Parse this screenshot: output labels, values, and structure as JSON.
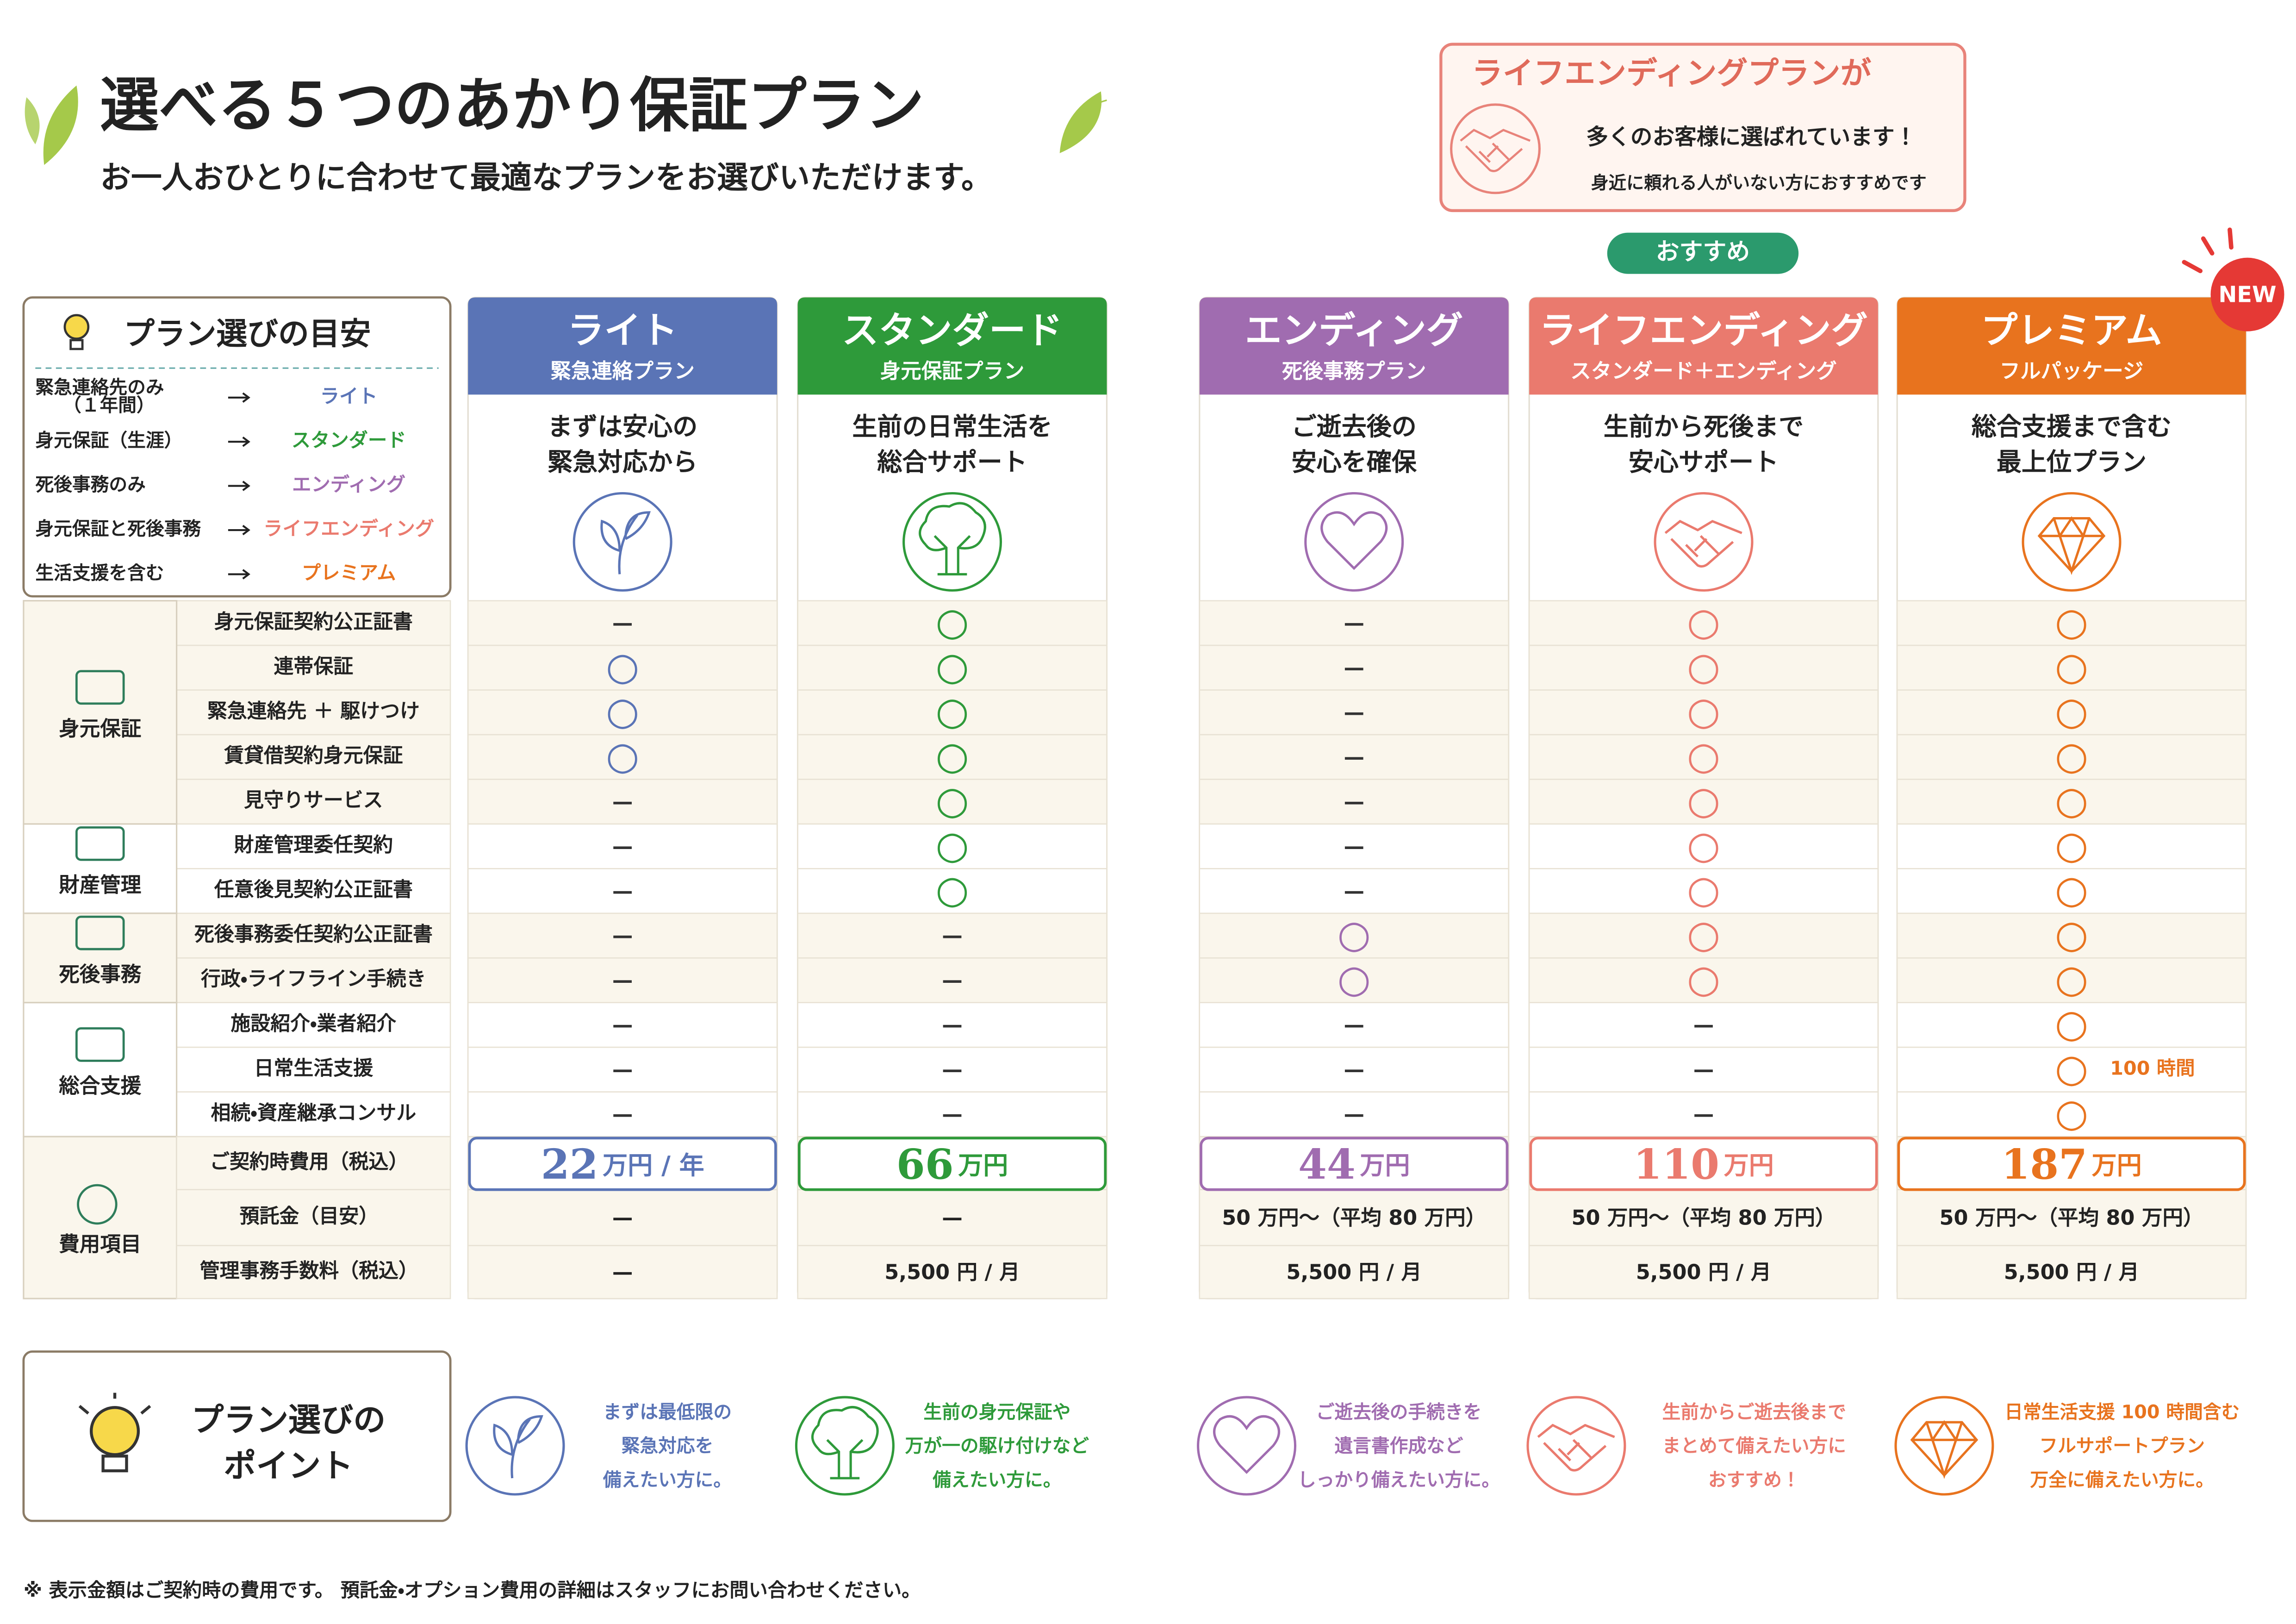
{
  "header": {
    "title": "選べる５つのあかり保証プラン",
    "subtitle": "お一人おひとりに合わせて最適なプランをお選びいただけます。"
  },
  "promo": {
    "title": "ライフエンディングプランが",
    "line1": "多くのお客様に選ばれています！",
    "line2": "身近に頼れる人がいない方におすすめです"
  },
  "recommend_badge": "おすすめ",
  "new_badge": "NEW",
  "guide": {
    "title": "プラン選びの目安",
    "rows": [
      {
        "need": [
          "緊急連絡先のみ",
          "（１年間）"
        ],
        "plan": "ライト"
      },
      {
        "need": [
          "身元保証（生涯）"
        ],
        "plan": "スタンダード"
      },
      {
        "need": [
          "死後事務のみ"
        ],
        "plan": "エンディング"
      },
      {
        "need": [
          "身元保証と死後事務"
        ],
        "plan": "ライフエンディング"
      },
      {
        "need": [
          "生活支援を含む"
        ],
        "plan": "プレミアム"
      }
    ]
  },
  "plans": [
    {
      "name": "ライト",
      "sub": "緊急連絡プラン",
      "tagline": [
        "まずは安心の",
        "緊急対応から"
      ],
      "color": "#5a74b6",
      "price": "22",
      "price_unit": "万円 / 年",
      "deposit": "—",
      "fee": "—",
      "point": [
        "まずは最低限の",
        "緊急対応を",
        "備えたい方に。"
      ]
    },
    {
      "name": "スタンダード",
      "sub": "身元保証プラン",
      "tagline": [
        "生前の日常生活を",
        "総合サポート"
      ],
      "color": "#2e9a3a",
      "price": "66",
      "price_unit": "万円",
      "deposit": "—",
      "fee": "5,500 円 / 月",
      "point": [
        "生前の身元保証や",
        "万が一の駆け付けなど",
        "備えたい方に。"
      ]
    },
    {
      "name": "エンディング",
      "sub": "死後事務プラン",
      "tagline": [
        "ご逝去後の",
        "安心を確保"
      ],
      "color": "#a06cb0",
      "price": "44",
      "price_unit": "万円",
      "deposit": "50 万円〜（平均 80 万円）",
      "fee": "5,500 円 / 月",
      "point": [
        "ご逝去後の手続きを",
        "遺言書作成など",
        "しっかり備えたい方に。"
      ]
    },
    {
      "name": "ライフエンディング",
      "sub": "スタンダード＋エンディング",
      "tagline": [
        "生前から死後まで",
        "安心サポート"
      ],
      "color": "#ea7a6e",
      "price": "110",
      "price_unit": "万円",
      "deposit": "50 万円〜（平均 80 万円）",
      "fee": "5,500 円 / 月",
      "point": [
        "生前からご逝去後まで",
        "まとめて備えたい方に",
        "おすすめ！"
      ]
    },
    {
      "name": "プレミアム",
      "sub": "フルパッケージ",
      "tagline": [
        "総合支援まで含む",
        "最上位プラン"
      ],
      "color": "#e8731e",
      "price": "187",
      "price_unit": "万円",
      "deposit": "50 万円〜（平均 80 万円）",
      "fee": "5,500 円 / 月",
      "point": [
        "日常生活支援 100 時間含む",
        "フルサポートプラン",
        "万全に備えたい方に。"
      ]
    }
  ],
  "categories": [
    {
      "name": "身元保証",
      "items": [
        {
          "name": "身元保証契約公正証書",
          "marks": [
            "—",
            "○",
            "—",
            "○",
            "○"
          ]
        },
        {
          "name": "連帯保証",
          "marks": [
            "○",
            "○",
            "—",
            "○",
            "○"
          ]
        },
        {
          "name": "緊急連絡先 ＋ 駆けつけ",
          "marks": [
            "○",
            "○",
            "—",
            "○",
            "○"
          ]
        },
        {
          "name": "賃貸借契約身元保証",
          "marks": [
            "○",
            "○",
            "—",
            "○",
            "○"
          ]
        },
        {
          "name": "見守りサービス",
          "marks": [
            "—",
            "○",
            "—",
            "○",
            "○"
          ]
        }
      ]
    },
    {
      "name": "財産管理",
      "items": [
        {
          "name": "財産管理委任契約",
          "marks": [
            "—",
            "○",
            "—",
            "○",
            "○"
          ]
        },
        {
          "name": "任意後見契約公正証書",
          "marks": [
            "—",
            "○",
            "—",
            "○",
            "○"
          ]
        }
      ]
    },
    {
      "name": "死後事務",
      "items": [
        {
          "name": "死後事務委任契約公正証書",
          "marks": [
            "—",
            "—",
            "○",
            "○",
            "○"
          ]
        },
        {
          "name": "行政・ライフライン手続き",
          "marks": [
            "—",
            "—",
            "○",
            "○",
            "○"
          ]
        }
      ]
    },
    {
      "name": "総合支援",
      "items": [
        {
          "name": "施設紹介・業者紹介",
          "marks": [
            "—",
            "—",
            "—",
            "—",
            "○"
          ]
        },
        {
          "name": "日常生活支援",
          "marks": [
            "—",
            "—",
            "—",
            "—",
            "○"
          ],
          "note": "100 時間"
        },
        {
          "name": "相続・資産継承コンサル",
          "marks": [
            "—",
            "—",
            "—",
            "—",
            "○"
          ]
        }
      ]
    }
  ],
  "cost": {
    "name": "費用項目",
    "labels": [
      "ご契約時費用（税込）",
      "預託金（目安）",
      "管理事務手数料（税込）"
    ]
  },
  "points_title": [
    "プラン選びの",
    "ポイント"
  ],
  "footnote": "※ 表示金額はご契約時の費用です。 預託金・オプション費用の詳細はスタッフにお問い合わせください。"
}
